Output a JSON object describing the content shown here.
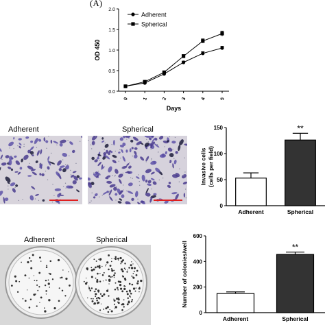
{
  "panel_label": "(A)",
  "growth_images": [],
  "invasion_images": {
    "left_label": "Adherent",
    "right_label": "Spherical"
  },
  "colony_images": {
    "left_label": "Adherent",
    "right_label": "Spherical"
  },
  "chart_data": [
    {
      "type": "line",
      "xlabel": "Days",
      "ylabel": "OD 450",
      "x": [
        0,
        1,
        2,
        3,
        4,
        5
      ],
      "x_tick_labels": [
        "0",
        "1",
        "2",
        "3",
        "4",
        "5"
      ],
      "y_tick_labels": [
        "0.0",
        "0.5",
        "1.0",
        "1.5",
        "2.0"
      ],
      "ylim": [
        0,
        2.0
      ],
      "legend_position": "top-left",
      "series": [
        {
          "name": "Adherent",
          "marker": "circle",
          "values": [
            0.12,
            0.2,
            0.42,
            0.7,
            0.92,
            1.05
          ],
          "errors": [
            0.01,
            0.02,
            0.02,
            0.03,
            0.04,
            0.04
          ]
        },
        {
          "name": "Spherical",
          "marker": "square",
          "values": [
            0.12,
            0.23,
            0.46,
            0.85,
            1.22,
            1.4
          ],
          "errors": [
            0.01,
            0.02,
            0.03,
            0.04,
            0.05,
            0.06
          ]
        }
      ]
    },
    {
      "type": "bar",
      "ylabel": "Invasive cells\n(cells per field)",
      "categories": [
        "Adherent",
        "Spherical"
      ],
      "values": [
        53,
        126
      ],
      "errors": [
        10,
        13
      ],
      "annotations": [
        "",
        "**"
      ],
      "y_tick_labels": [
        "0",
        "50",
        "100",
        "150"
      ],
      "ylim": [
        0,
        150
      ],
      "bar_colors": [
        "#ffffff",
        "#333333"
      ]
    },
    {
      "type": "bar",
      "ylabel": "Number of colonies/well",
      "categories": [
        "Adherent",
        "Spherical"
      ],
      "values": [
        150,
        455
      ],
      "errors": [
        12,
        18
      ],
      "annotations": [
        "",
        "**"
      ],
      "y_tick_labels": [
        "0",
        "200",
        "400",
        "600"
      ],
      "ylim": [
        0,
        600
      ],
      "bar_colors": [
        "#ffffff",
        "#333333"
      ]
    }
  ]
}
